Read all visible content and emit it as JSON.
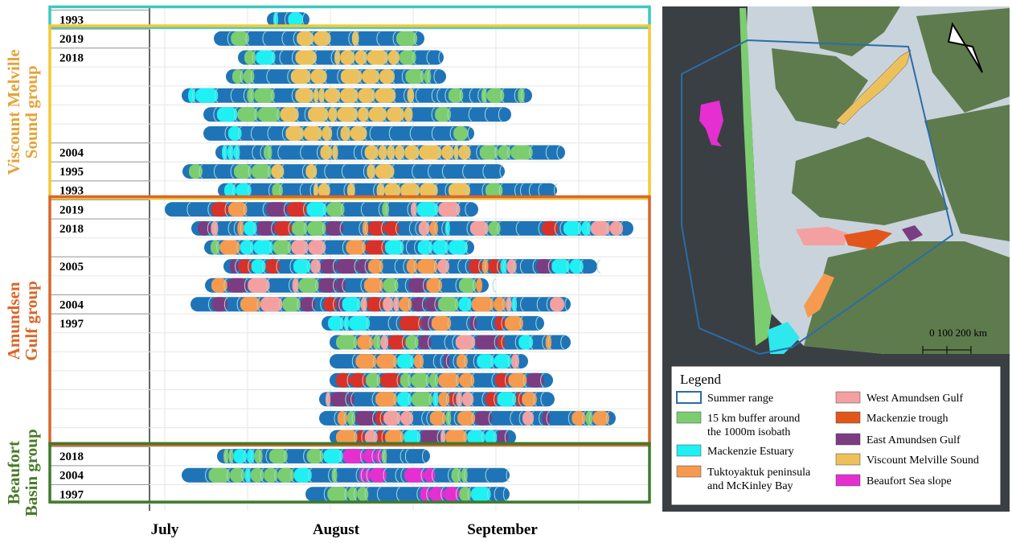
{
  "timeline": {
    "months": [
      "July",
      "August",
      "September"
    ],
    "groups": [
      {
        "label": null,
        "rows": [
          "1993"
        ]
      },
      {
        "label": [
          "Viscount Melville",
          "Sound group"
        ],
        "rows": [
          "2019",
          "2018",
          null,
          null,
          null,
          null,
          "2004",
          "1995",
          "1993"
        ]
      },
      {
        "label": [
          "Amundsen",
          "Gulf group"
        ],
        "rows": [
          "2019",
          "2018",
          null,
          "2005",
          null,
          "2004",
          "1997",
          null,
          null,
          null,
          null,
          null,
          null
        ]
      },
      {
        "label": [
          "Beaufort",
          "Basin group"
        ],
        "rows": [
          "2018",
          "2004",
          "1997"
        ]
      }
    ]
  },
  "map": {
    "scale_label": "0  100 200 km",
    "legend": {
      "title": "Legend",
      "items": [
        {
          "label": [
            "Summer range"
          ]
        },
        {
          "label": [
            "15 km buffer around",
            "the 1000m isobath"
          ]
        },
        {
          "label": [
            "Mackenzie Estuary"
          ]
        },
        {
          "label": [
            "Tuktoyaktuk peninsula",
            "and McKinley Bay"
          ]
        },
        {
          "label": [
            "West Amundsen Gulf"
          ]
        },
        {
          "label": [
            "Mackenzie trough"
          ]
        },
        {
          "label": [
            "East Amundsen Gulf"
          ]
        },
        {
          "label": [
            "Viscount Melville Sound"
          ]
        },
        {
          "label": [
            "Beaufort Sea slope"
          ]
        }
      ]
    }
  }
}
